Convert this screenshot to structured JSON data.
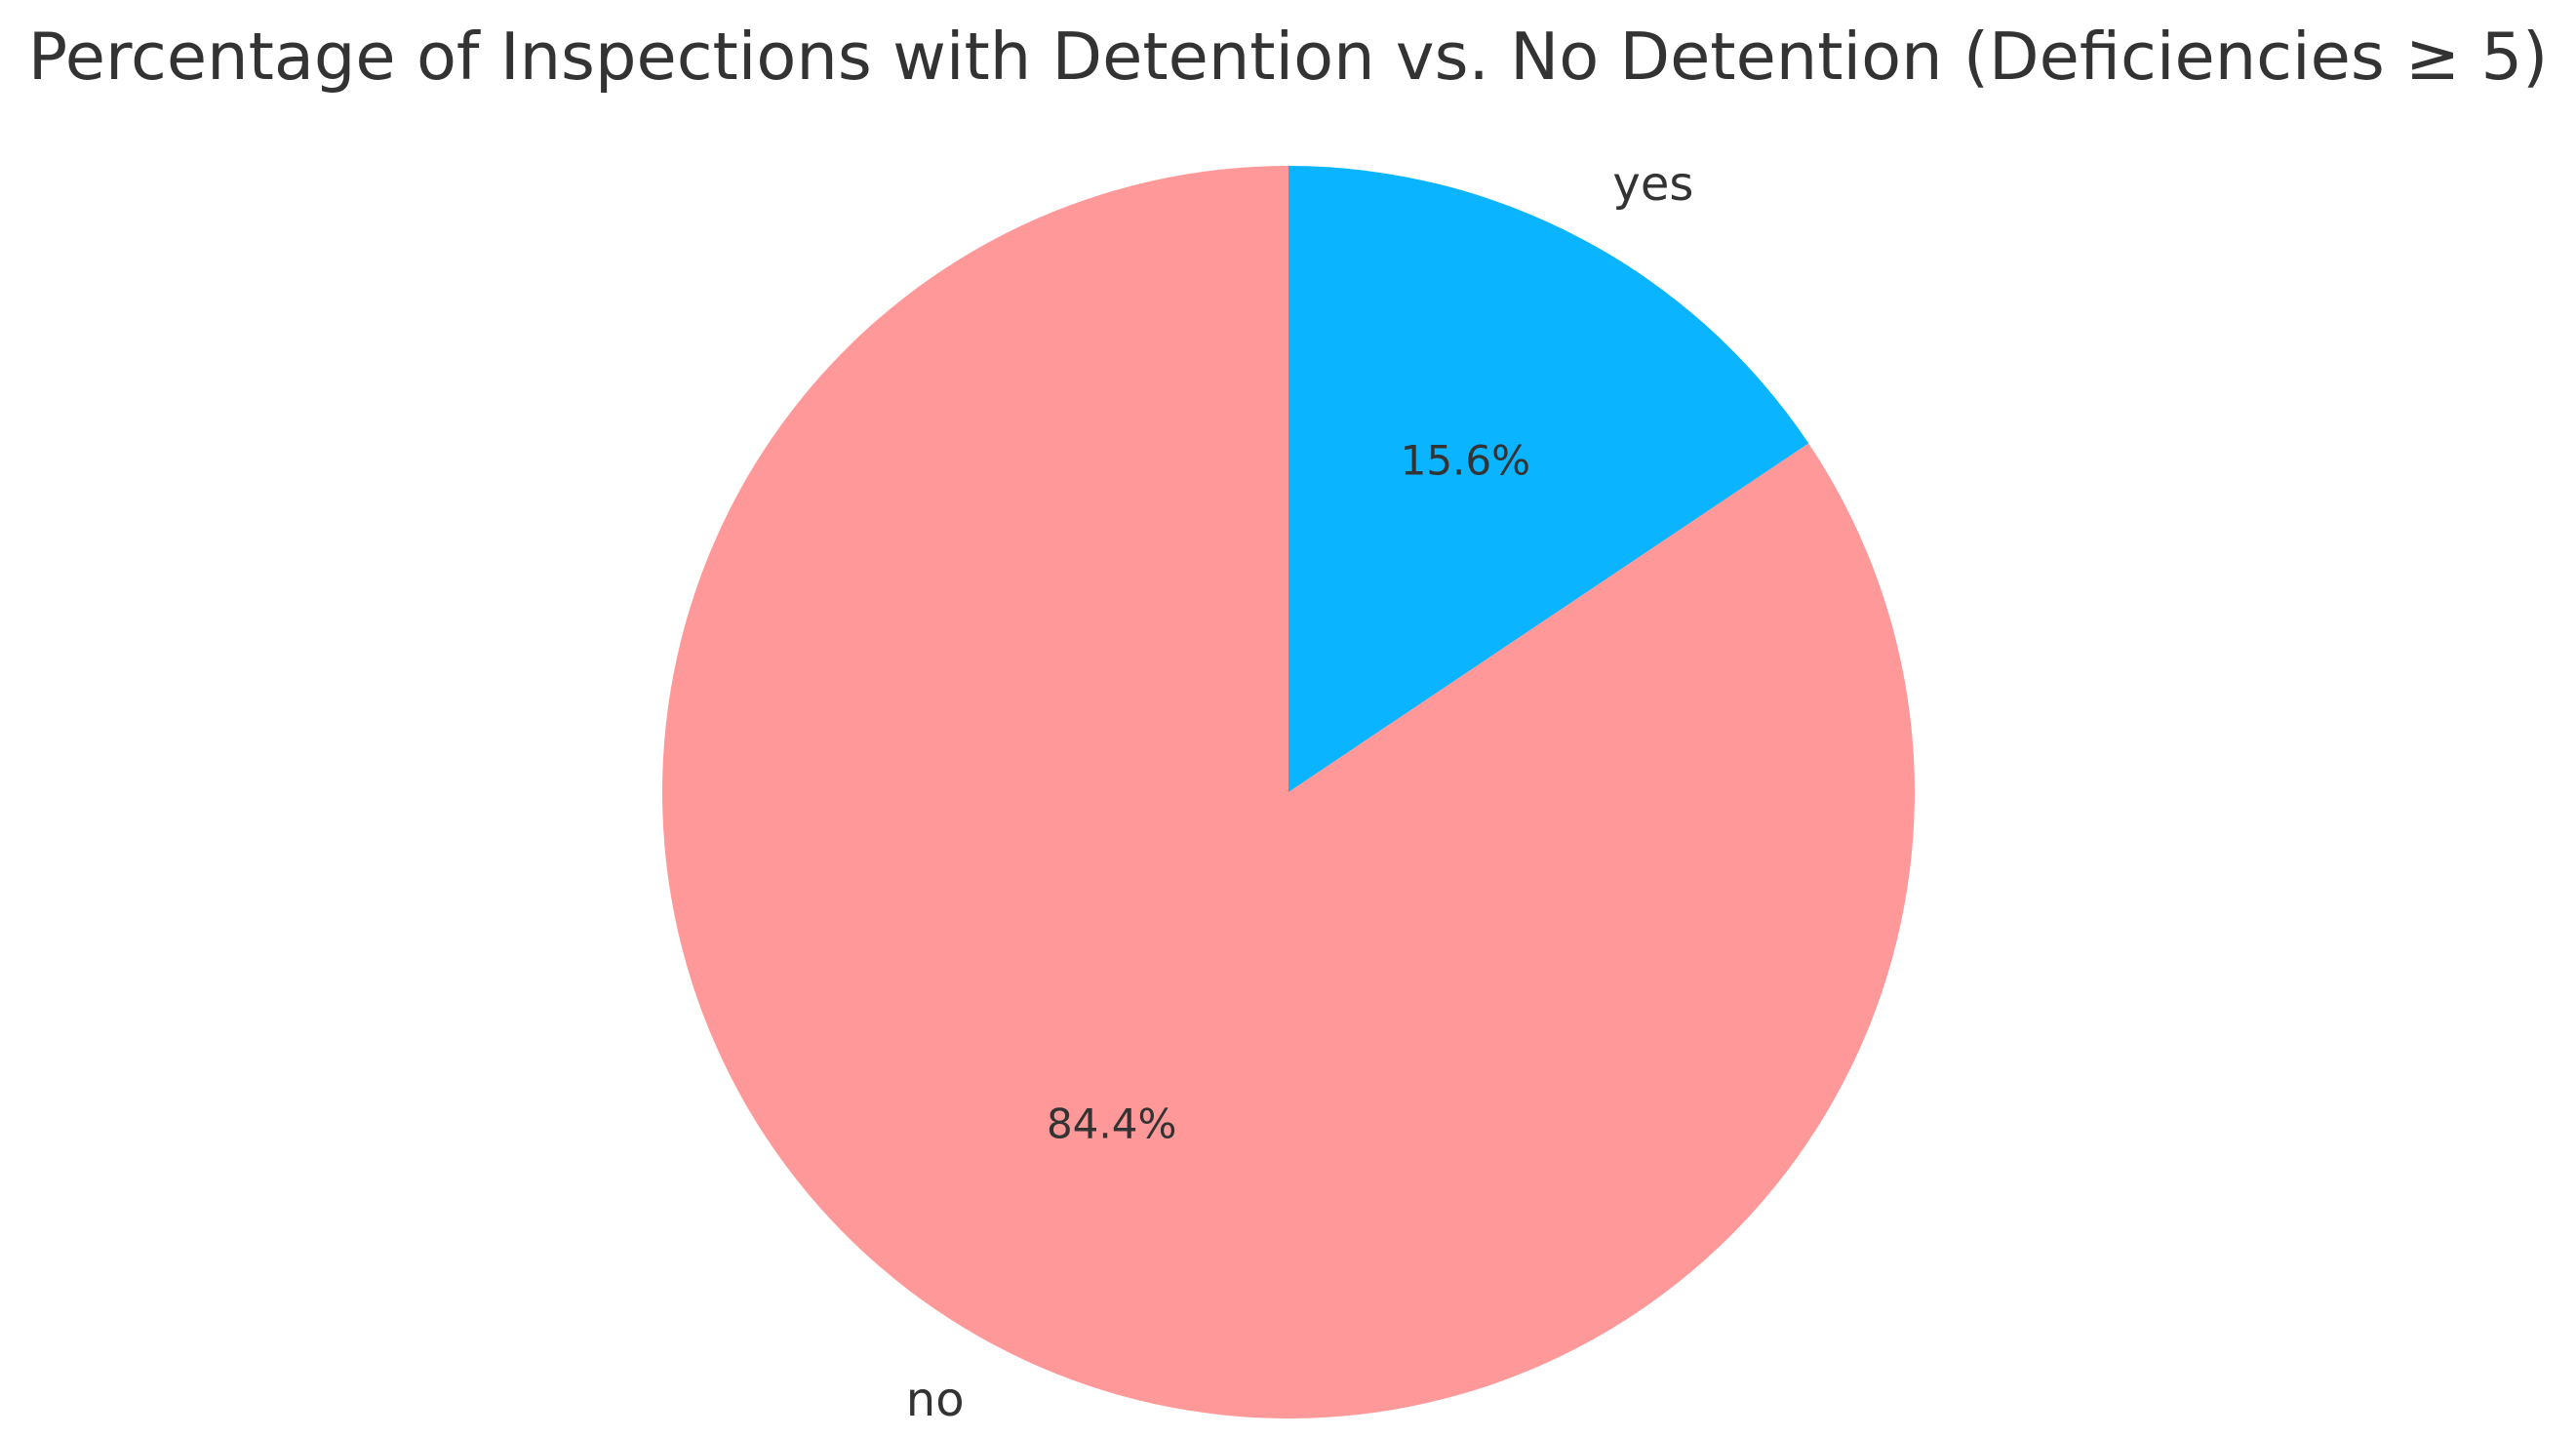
{
  "chart_data": {
    "type": "pie",
    "title": "Percentage of Inspections with Detention vs. No Detention (Deficiencies ≥ 5)",
    "slices": [
      {
        "label": "yes",
        "value": 15.6,
        "pct_label": "15.6%",
        "color": "#0ab4ff"
      },
      {
        "label": "no",
        "value": 84.4,
        "pct_label": "84.4%",
        "color": "#ff9999"
      }
    ],
    "start_angle_deg": 90,
    "direction": "clockwise",
    "legend": "none"
  }
}
